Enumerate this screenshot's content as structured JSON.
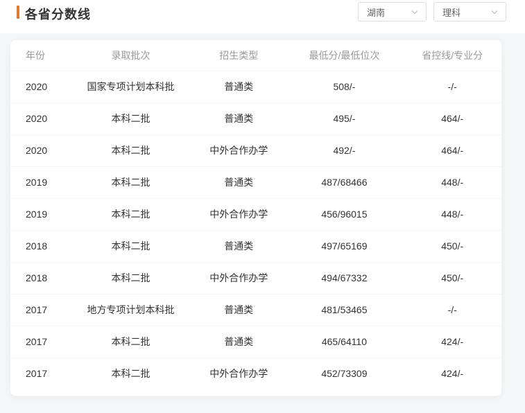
{
  "page": {
    "title": "各省分数线",
    "accent_color": "#e4772e"
  },
  "filters": {
    "province": {
      "value": "湖南"
    },
    "subject": {
      "value": "理科"
    }
  },
  "table": {
    "columns": [
      "年份",
      "录取批次",
      "招生类型",
      "最低分/最低位次",
      "省控线/专业分"
    ],
    "rows": [
      [
        "2020",
        "国家专项计划本科批",
        "普通类",
        "508/-",
        "-/-"
      ],
      [
        "2020",
        "本科二批",
        "普通类",
        "495/-",
        "464/-"
      ],
      [
        "2020",
        "本科二批",
        "中外合作办学",
        "492/-",
        "464/-"
      ],
      [
        "2019",
        "本科二批",
        "普通类",
        "487/68466",
        "448/-"
      ],
      [
        "2019",
        "本科二批",
        "中外合作办学",
        "456/96015",
        "448/-"
      ],
      [
        "2018",
        "本科二批",
        "普通类",
        "497/65169",
        "450/-"
      ],
      [
        "2018",
        "本科二批",
        "中外合作办学",
        "494/67332",
        "450/-"
      ],
      [
        "2017",
        "地方专项计划本科批",
        "普通类",
        "481/53465",
        "-/-"
      ],
      [
        "2017",
        "本科二批",
        "普通类",
        "465/64110",
        "424/-"
      ],
      [
        "2017",
        "本科二批",
        "中外合作办学",
        "452/73309",
        "424/-"
      ]
    ]
  }
}
